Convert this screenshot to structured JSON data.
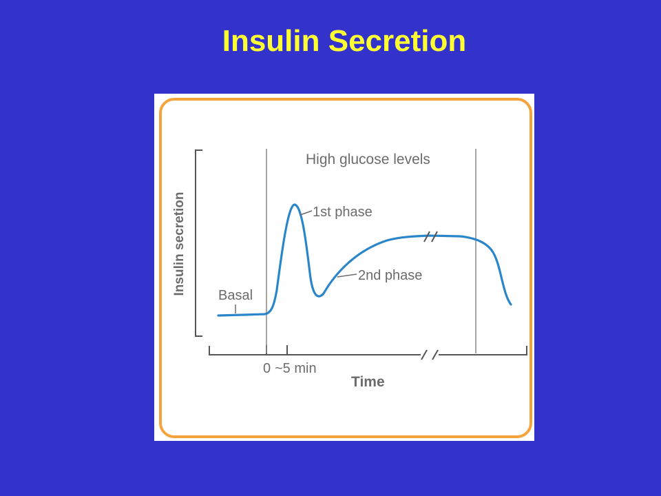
{
  "slide": {
    "title": "Insulin Secretion"
  },
  "figure": {
    "border_color": "#f5a33c",
    "curve_color": "#2a86c8",
    "background_color": "#3333cc",
    "title_color": "#ffff33",
    "header_label": "High glucose levels",
    "y_axis_label": "Insulin secretion",
    "x_axis_label": "Time",
    "labels": {
      "basal": "Basal",
      "first_phase": "1st phase",
      "second_phase": "2nd phase"
    },
    "ticks": {
      "zero": "0",
      "five_min": "~5 min"
    }
  }
}
